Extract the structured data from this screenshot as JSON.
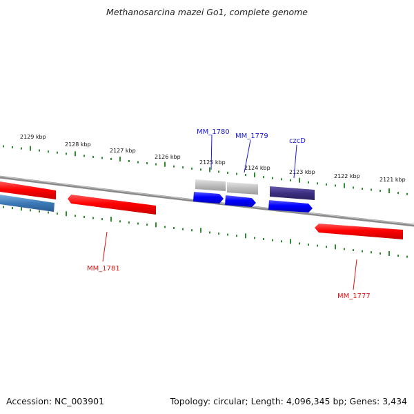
{
  "title": "Methanosarcina mazei Go1, complete genome",
  "footer": {
    "accession": "Accession: NC_003901",
    "summary": "Topology: circular; Length: 4,096,345 bp; Genes: 3,434"
  },
  "ruler": {
    "unit": "kbp",
    "upper_ticks": [
      "2129 kbp",
      "2128 kbp",
      "2127 kbp",
      "2126 kbp",
      "2125 kbp",
      "2124 kbp",
      "2123 kbp",
      "2122 kbp",
      "2121 kbp"
    ]
  },
  "genes": {
    "top": [
      "MM_1780",
      "MM_1779",
      "czcD"
    ],
    "bottom": [
      "MM_1781",
      "MM_1777"
    ]
  },
  "colors": {
    "backbone": "#8a8a8a",
    "tick": "#2e8b2e",
    "reverse_gene": "#ee1111",
    "forward_gene": "#1111ee",
    "feature_gray": "#bbbbbb",
    "feature_purple": "#4a3a8c",
    "feature_steel": "#3a7ab8",
    "label_blue": "#1a1acc",
    "label_red": "#dd1111"
  }
}
